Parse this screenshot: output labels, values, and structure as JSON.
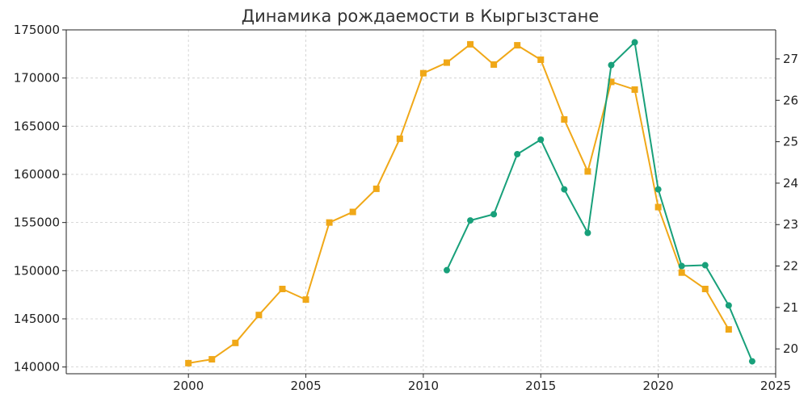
{
  "chart_data": {
    "type": "line",
    "title": "Динамика рождаемости в Кыргызстане",
    "xlabel": "",
    "ylabel": "",
    "y2label": "",
    "xlim": [
      1994.8,
      2025
    ],
    "ylim": [
      139300,
      175000
    ],
    "y2lim": [
      19.4,
      27.7
    ],
    "x_ticks": [
      2000,
      2005,
      2010,
      2015,
      2020,
      2025
    ],
    "y_ticks": [
      140000,
      145000,
      150000,
      155000,
      160000,
      165000,
      170000,
      175000
    ],
    "y2_ticks": [
      20,
      21,
      22,
      23,
      24,
      25,
      26,
      27
    ],
    "grid": true,
    "series": [
      {
        "axis": "left",
        "color": "#f0a818",
        "marker": "square",
        "x": [
          2000,
          2001,
          2002,
          2003,
          2004,
          2005,
          2006,
          2007,
          2008,
          2009,
          2010,
          2011,
          2012,
          2013,
          2014,
          2015,
          2016,
          2017,
          2018,
          2019,
          2020,
          2021,
          2022,
          2023
        ],
        "values": [
          140400,
          140800,
          142500,
          145400,
          148100,
          147000,
          155000,
          156100,
          158500,
          163700,
          170500,
          171600,
          173500,
          171400,
          173400,
          171900,
          165700,
          160300,
          169600,
          168800,
          156600,
          149800,
          148100,
          143900
        ]
      },
      {
        "axis": "right",
        "color": "#18a07a",
        "marker": "circle",
        "x": [
          2011,
          2012,
          2013,
          2014,
          2015,
          2016,
          2017,
          2018,
          2019,
          2020,
          2021,
          2022,
          2023,
          2024
        ],
        "values": [
          21.9,
          23.1,
          23.25,
          24.7,
          25.05,
          23.85,
          22.8,
          26.85,
          27.4,
          23.85,
          22.0,
          22.02,
          21.05,
          19.7
        ]
      }
    ]
  }
}
